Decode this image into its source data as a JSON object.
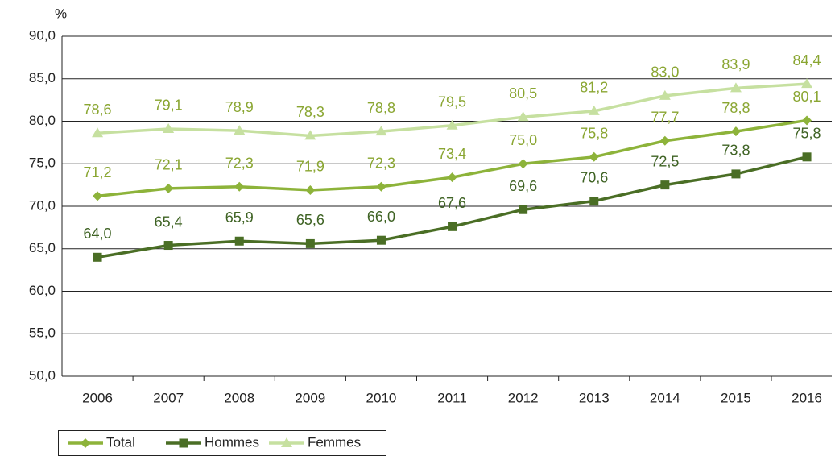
{
  "chart_data": {
    "type": "line",
    "y_label": "%",
    "categories": [
      "2006",
      "2007",
      "2008",
      "2009",
      "2010",
      "2011",
      "2012",
      "2013",
      "2014",
      "2015",
      "2016"
    ],
    "series": [
      {
        "name": "Total",
        "color": "#8db33a",
        "label_color": "#8aa632",
        "marker": "diamond",
        "values": [
          71.2,
          72.1,
          72.3,
          71.9,
          72.3,
          73.4,
          75.0,
          75.8,
          77.7,
          78.8,
          80.1
        ],
        "value_labels": [
          "71,2",
          "72,1",
          "72,3",
          "71,9",
          "72,3",
          "73,4",
          "75,0",
          "75,8",
          "77,7",
          "78,8",
          "80,1"
        ]
      },
      {
        "name": "Hommes",
        "color": "#4a6e25",
        "label_color": "#3f6324",
        "marker": "square",
        "values": [
          64.0,
          65.4,
          65.9,
          65.6,
          66.0,
          67.6,
          69.6,
          70.6,
          72.5,
          73.8,
          75.8
        ],
        "value_labels": [
          "64,0",
          "65,4",
          "65,9",
          "65,6",
          "66,0",
          "67,6",
          "69,6",
          "70,6",
          "72,5",
          "73,8",
          "75,8"
        ]
      },
      {
        "name": "Femmes",
        "color": "#c6e0a0",
        "label_color": "#8aa632",
        "marker": "triangle",
        "values": [
          78.6,
          79.1,
          78.9,
          78.3,
          78.8,
          79.5,
          80.5,
          81.2,
          83.0,
          83.9,
          84.4
        ],
        "value_labels": [
          "78,6",
          "79,1",
          "78,9",
          "78,3",
          "78,8",
          "79,5",
          "80,5",
          "81,2",
          "83,0",
          "83,9",
          "84,4"
        ]
      }
    ],
    "ylim": [
      50,
      90
    ],
    "yticks": [
      {
        "value": 50,
        "label": "50,0"
      },
      {
        "value": 55,
        "label": "55,0"
      },
      {
        "value": 60,
        "label": "60,0"
      },
      {
        "value": 65,
        "label": "65,0"
      },
      {
        "value": 70,
        "label": "70,0"
      },
      {
        "value": 75,
        "label": "75,0"
      },
      {
        "value": 80,
        "label": "80,0"
      },
      {
        "value": 85,
        "label": "85,0"
      },
      {
        "value": 90,
        "label": "90,0"
      }
    ],
    "grid": true,
    "legend": "bottom-left"
  }
}
